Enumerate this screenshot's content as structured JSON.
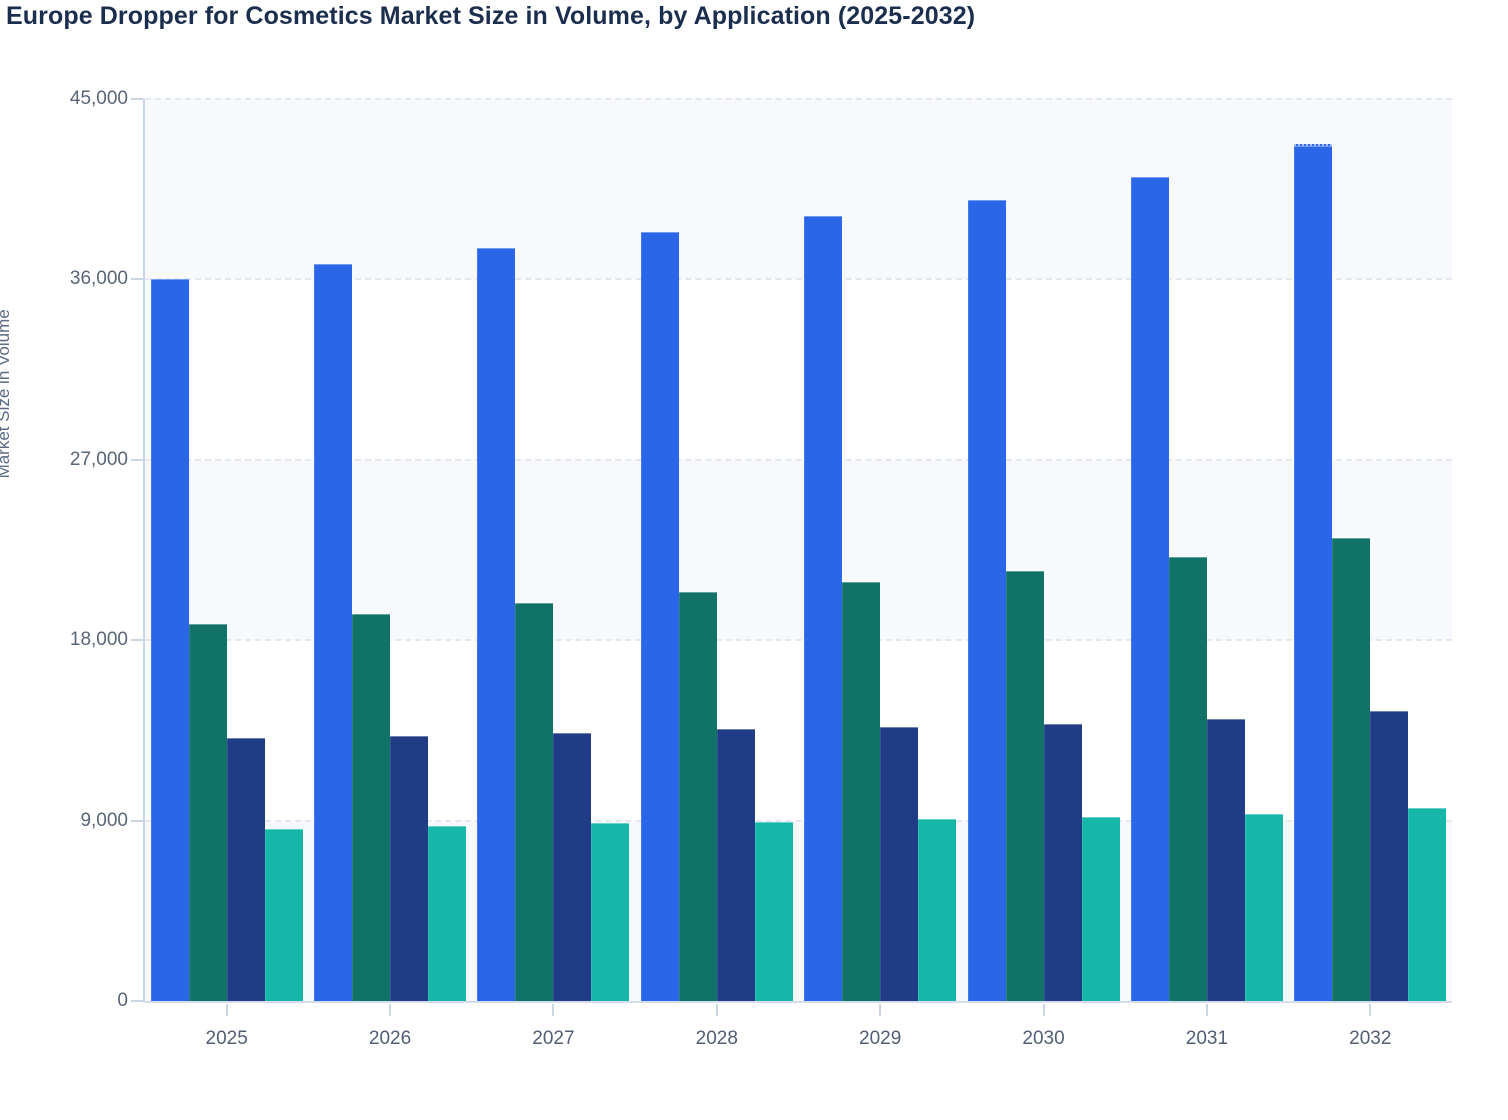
{
  "chart_data": {
    "type": "bar",
    "title": "Europe Dropper for Cosmetics Market Size in Volume, by Application (2025-2032)",
    "xlabel": "",
    "ylabel": "Market Size in Volume",
    "categories": [
      "2025",
      "2026",
      "2027",
      "2028",
      "2029",
      "2030",
      "2031",
      "2032"
    ],
    "y_ticks": [
      "0",
      "9,000",
      "18,000",
      "27,000",
      "36,000",
      "45,000"
    ],
    "ylim": [
      0,
      45000
    ],
    "grid": "horizontal-dashed",
    "legend": "none",
    "series": [
      {
        "name": "Blue",
        "color": "#2A66E8",
        "values": [
          36000,
          36750,
          37550,
          38350,
          39150,
          39950,
          41100,
          42750
        ]
      },
      {
        "name": "Dark teal",
        "color": "#117268",
        "values": [
          18800,
          19300,
          19850,
          20400,
          20900,
          21450,
          22150,
          23100
        ]
      },
      {
        "name": "Navy",
        "color": "#203C86",
        "values": [
          13100,
          13220,
          13370,
          13550,
          13650,
          13800,
          14050,
          14480
        ]
      },
      {
        "name": "Teal",
        "color": "#16B7A9",
        "values": [
          8600,
          8750,
          8900,
          8950,
          9100,
          9200,
          9350,
          9620
        ]
      }
    ],
    "top_dotted_bar": {
      "series_index": 0,
      "category": "2032"
    },
    "style": {
      "band_fill": "#F7F9FC",
      "grid_color": "#E3E8F0",
      "axis_line_color": "#C9D5EA",
      "tick_mark_color": "#CBD6E4",
      "tick_label_color": "#5A6577",
      "title_color": "#1C2E4E"
    }
  }
}
